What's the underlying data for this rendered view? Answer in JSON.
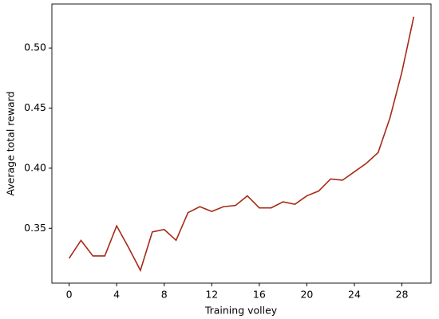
{
  "chart_data": {
    "type": "line",
    "xlabel": "Training volley",
    "ylabel": "Average total reward",
    "x": [
      0,
      1,
      2,
      3,
      4,
      5,
      6,
      7,
      8,
      9,
      10,
      11,
      12,
      13,
      14,
      15,
      16,
      17,
      18,
      19,
      20,
      21,
      22,
      23,
      24,
      25,
      26,
      27,
      28,
      29
    ],
    "series": [
      {
        "color": "#a52a16",
        "values": [
          0.325,
          0.34,
          0.327,
          0.327,
          0.352,
          0.334,
          0.315,
          0.347,
          0.349,
          0.34,
          0.363,
          0.368,
          0.364,
          0.368,
          0.369,
          0.377,
          0.367,
          0.367,
          0.372,
          0.37,
          0.377,
          0.381,
          0.391,
          0.39,
          0.397,
          0.404,
          0.413,
          0.442,
          0.48,
          0.526
        ]
      }
    ],
    "xlim": [
      -1.45,
      30.45
    ],
    "ylim": [
      0.3044,
      0.5366
    ],
    "xticks": [
      0,
      4,
      8,
      12,
      16,
      20,
      24,
      28
    ],
    "yticks": [
      0.35,
      {
        "value": 0.4,
        "label": "0.40"
      },
      0.45,
      {
        "value": 0.5,
        "label": "0.50"
      }
    ]
  }
}
